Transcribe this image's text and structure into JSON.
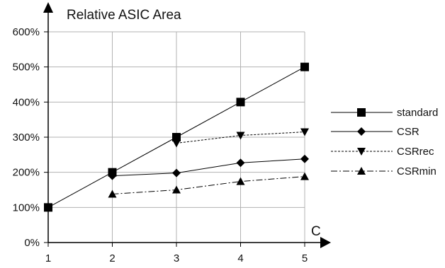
{
  "chart_data": {
    "type": "line",
    "title": "Relative ASIC Area",
    "xlabel": "C",
    "ylabel": "",
    "x": [
      1,
      2,
      3,
      4,
      5
    ],
    "xlim": [
      1,
      5
    ],
    "ylim": [
      0,
      600
    ],
    "yticks": [
      "0%",
      "100%",
      "200%",
      "300%",
      "400%",
      "500%",
      "600%"
    ],
    "xticks": [
      "1",
      "2",
      "3",
      "4",
      "5"
    ],
    "grid": "horizontal and vertical",
    "legend_position": "right",
    "series": [
      {
        "name": "standard",
        "marker": "square",
        "line_style": "solid",
        "color": "#000000",
        "values": [
          100,
          200,
          300,
          400,
          500
        ]
      },
      {
        "name": "CSR",
        "marker": "diamond",
        "line_style": "solid",
        "color": "#000000",
        "values": [
          null,
          190,
          198,
          227,
          238
        ]
      },
      {
        "name": "CSRrec",
        "marker": "triangle-down",
        "line_style": "dotted",
        "color": "#000000",
        "values": [
          null,
          null,
          283,
          305,
          315
        ]
      },
      {
        "name": "CSRmin",
        "marker": "triangle-up",
        "line_style": "dash-dot",
        "color": "#000000",
        "values": [
          null,
          138,
          150,
          174,
          188
        ]
      }
    ]
  }
}
